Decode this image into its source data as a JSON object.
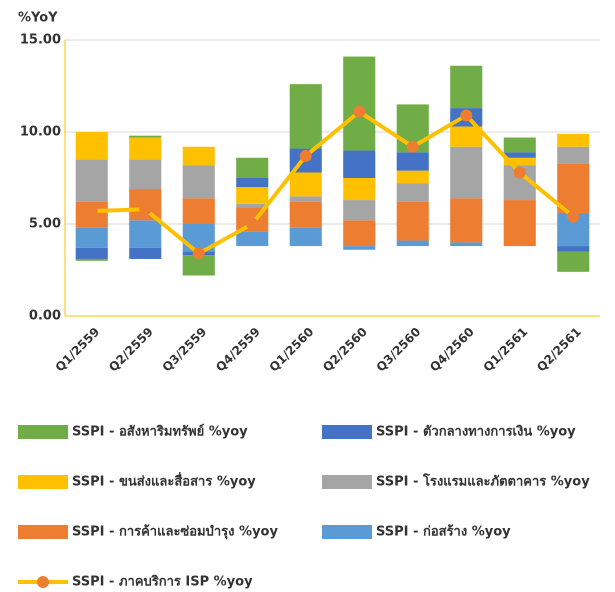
{
  "chart_data": {
    "type": "bar",
    "stacked": true,
    "y_label": "%YoY",
    "categories": [
      "Q1/2559",
      "Q2/2559",
      "Q3/2559",
      "Q4/2559",
      "Q1/2560",
      "Q2/2560",
      "Q3/2560",
      "Q4/2560",
      "Q1/2561",
      "Q2/2561"
    ],
    "ylim": [
      0,
      15
    ],
    "yticks": [
      {
        "value": 0,
        "label": "0.00"
      },
      {
        "value": 5,
        "label": "5.00"
      },
      {
        "value": 10,
        "label": "10.00"
      },
      {
        "value": 15,
        "label": "15.00"
      }
    ],
    "grid": true,
    "series": [
      {
        "color": "none",
        "values": [
          3.7,
          3.7,
          3.5,
          3.8,
          3.8,
          3.6,
          3.8,
          3.8,
          3.8,
          3.8
        ]
      },
      {
        "name": "SSPI - ก่อสร้าง %yoy",
        "color": "#5b9bd5",
        "values": [
          1.1,
          1.5,
          1.5,
          0.8,
          1.0,
          0.2,
          0.3,
          0.2,
          0.0,
          1.8
        ]
      },
      {
        "name": "SSPI - การค้าและซ่อมบำรุง %yoy",
        "color": "#ed7d31",
        "values": [
          1.4,
          1.7,
          1.4,
          1.3,
          1.4,
          1.4,
          2.1,
          2.4,
          2.5,
          2.7
        ]
      },
      {
        "name": "SSPI - โรงแรมและภัตตาคาร %yoy",
        "color": "#a5a5a5",
        "values": [
          2.3,
          1.6,
          1.8,
          0.2,
          0.3,
          1.1,
          1.0,
          2.8,
          1.9,
          0.9
        ]
      },
      {
        "name": "SSPI - ขนส่งและสื่อสาร %yoy",
        "color": "#ffc000",
        "values": [
          1.5,
          1.2,
          1.0,
          0.9,
          1.3,
          1.2,
          0.7,
          1.1,
          0.4,
          0.7
        ]
      },
      {
        "name": "SSPI - ตัวกลางทางการเงิน %yoy",
        "color": "#4472c4",
        "values": [
          -0.6,
          -0.6,
          -0.2,
          0.5,
          1.3,
          1.5,
          1.0,
          1.0,
          0.3,
          -0.3
        ]
      },
      {
        "name": "SSPI - อสังหาริมทรัพย์ %yoy",
        "color": "#70ad47",
        "values": [
          -0.1,
          0.1,
          -1.1,
          1.1,
          3.5,
          5.1,
          2.6,
          2.3,
          0.8,
          -1.1
        ]
      },
      {
        "name": "SSPI - ภาคบริการ ISP %yoy",
        "type": "line",
        "color": "#ffc000",
        "marker_color": "#ed7d31",
        "values": [
          5.7,
          5.8,
          3.4,
          5.0,
          8.7,
          11.1,
          9.2,
          10.9,
          7.8,
          5.4
        ]
      }
    ]
  }
}
